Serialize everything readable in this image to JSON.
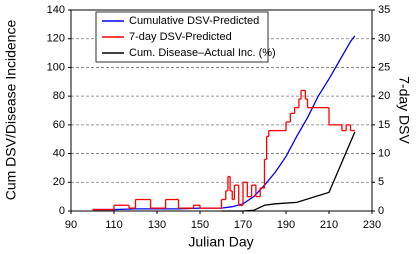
{
  "chart_data": {
    "type": "line",
    "xlabel": "Julian Day",
    "ylabel": "Cum DSV/Disease Incidence",
    "y2label": "7-day DSV",
    "xlim": [
      90,
      230
    ],
    "xticks": [
      90,
      110,
      130,
      150,
      170,
      190,
      210,
      230
    ],
    "ylim": [
      0,
      140
    ],
    "yticks": [
      0,
      20,
      40,
      60,
      80,
      100,
      120,
      140
    ],
    "y2lim": [
      0,
      35
    ],
    "y2ticks": [
      0,
      5,
      10,
      15,
      20,
      25,
      30,
      35
    ],
    "grid": true,
    "legend": "upper left",
    "series": [
      {
        "name": "Cumulative DSV-Predicted",
        "color": "#0000ff",
        "step": false,
        "x": [
          100,
          110,
          120,
          130,
          140,
          150,
          160,
          165,
          170,
          175,
          180,
          185,
          190,
          195,
          200,
          205,
          210,
          215,
          220,
          222
        ],
        "values": [
          1,
          1,
          1.5,
          1.5,
          1.5,
          2,
          2,
          3,
          5,
          10,
          18,
          27,
          38,
          52,
          65,
          80,
          92,
          105,
          118,
          122
        ]
      },
      {
        "name": "7-day DSV-Predicted",
        "color": "#ff0000",
        "step": true,
        "axis": "y2",
        "x": [
          100,
          110,
          117,
          120,
          127,
          130,
          134,
          140,
          147,
          150,
          154,
          160,
          162,
          163,
          164,
          165,
          166,
          168,
          170,
          172,
          174,
          176,
          178,
          180,
          181,
          182,
          188,
          190,
          192,
          194,
          196,
          197,
          199,
          200,
          205,
          210,
          215,
          216,
          218,
          220,
          222
        ],
        "values": [
          0.25,
          1,
          0.5,
          2,
          0.5,
          0.5,
          2,
          0.5,
          1,
          0.5,
          0.5,
          2,
          3.5,
          6,
          3.5,
          2,
          4.5,
          1,
          5,
          2.5,
          4.5,
          2.5,
          4,
          9,
          13,
          14,
          14,
          15.5,
          17,
          18,
          19.5,
          21,
          19.5,
          18,
          18,
          15,
          15,
          14,
          15,
          14,
          14
        ]
      },
      {
        "name": "Cum. Disease–Actual Inc. (%)",
        "color": "#000000",
        "step": false,
        "x": [
          160,
          170,
          175,
          180,
          185,
          195,
          210,
          222
        ],
        "values": [
          0,
          0,
          0.5,
          4,
          5,
          6,
          13,
          55
        ]
      }
    ]
  }
}
